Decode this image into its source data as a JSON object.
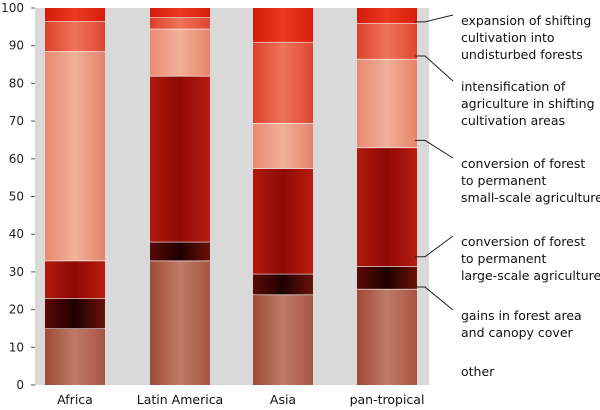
{
  "chart_data": {
    "type": "bar",
    "stacked": true,
    "categories": [
      "Africa",
      "Latin America",
      "Asia",
      "pan-tropical"
    ],
    "series": [
      {
        "name": "other",
        "values": [
          15,
          33,
          24,
          25.5
        ]
      },
      {
        "name": "gains in forest area and canopy cover",
        "values": [
          8,
          5,
          5.5,
          6
        ]
      },
      {
        "name": "conversion of forest to permanent large-scale agriculture",
        "values": [
          10,
          44,
          28,
          31.5
        ]
      },
      {
        "name": "conversion of forest to permanent small-scale agriculture",
        "values": [
          55.5,
          12.5,
          12,
          23.5
        ]
      },
      {
        "name": "intensification of agriculture in shifting cultivation areas",
        "values": [
          8,
          3,
          21.5,
          9.5
        ]
      },
      {
        "name": "expansion of shifting cultivation into undisturbed forests",
        "values": [
          3.5,
          2.5,
          9,
          4
        ]
      }
    ],
    "legend_lines": [
      [
        "other"
      ],
      [
        "gains in forest area",
        "and canopy cover"
      ],
      [
        "conversion of forest",
        "to permanent",
        "large-scale agriculture"
      ],
      [
        "conversion of forest",
        "to permanent",
        "small-scale agriculture"
      ],
      [
        "intensification of",
        "agriculture in shifting",
        "cultivation areas"
      ],
      [
        "expansion of shifting",
        "cultivation into",
        "undisturbed forests"
      ]
    ],
    "colors": {
      "other": [
        "#9d4a36",
        "#c07a68",
        "#a65542"
      ],
      "gains in forest area and canopy cover": [
        "#5a0a05",
        "#1f0000",
        "#6a1208"
      ],
      "conversion of forest to permanent large-scale agriculture": [
        "#b01a0e",
        "#8e0804",
        "#b81c10"
      ],
      "conversion of forest to permanent small-scale agriculture": [
        "#ea8a70",
        "#f4b09a",
        "#e6836a"
      ],
      "intensification of agriculture in shifting cultivation areas": [
        "#d9412a",
        "#f0735a",
        "#dc4731"
      ],
      "expansion of shifting cultivation into undisturbed forests": [
        "#d41a0c",
        "#ea3a20",
        "#d81c0e"
      ]
    },
    "plot_background": "#d9d9d9",
    "ylim": [
      0,
      100
    ],
    "yticks": [
      0,
      10,
      20,
      30,
      40,
      50,
      60,
      70,
      80,
      90,
      100
    ],
    "grid": false,
    "legend_position": "right",
    "title": "",
    "xlabel": "",
    "ylabel": ""
  }
}
